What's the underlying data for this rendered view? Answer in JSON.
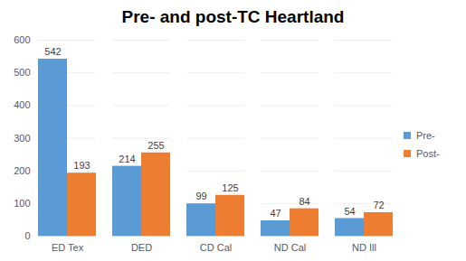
{
  "chart_data": {
    "type": "bar",
    "title": "Pre- and post-TC Heartland",
    "categories": [
      "ED Tex",
      "DED",
      "CD Cal",
      "ND Cal",
      "ND Ill"
    ],
    "series": [
      {
        "name": "Pre-",
        "color": "#5b9bd5",
        "values": [
          542,
          214,
          99,
          47,
          54
        ]
      },
      {
        "name": "Post-",
        "color": "#ed7d31",
        "values": [
          193,
          255,
          125,
          84,
          72
        ]
      }
    ],
    "ylim": [
      0,
      600
    ],
    "yticks": [
      0,
      100,
      200,
      300,
      400,
      500,
      600
    ],
    "grid": true,
    "data_labels": true,
    "legend": "right"
  }
}
